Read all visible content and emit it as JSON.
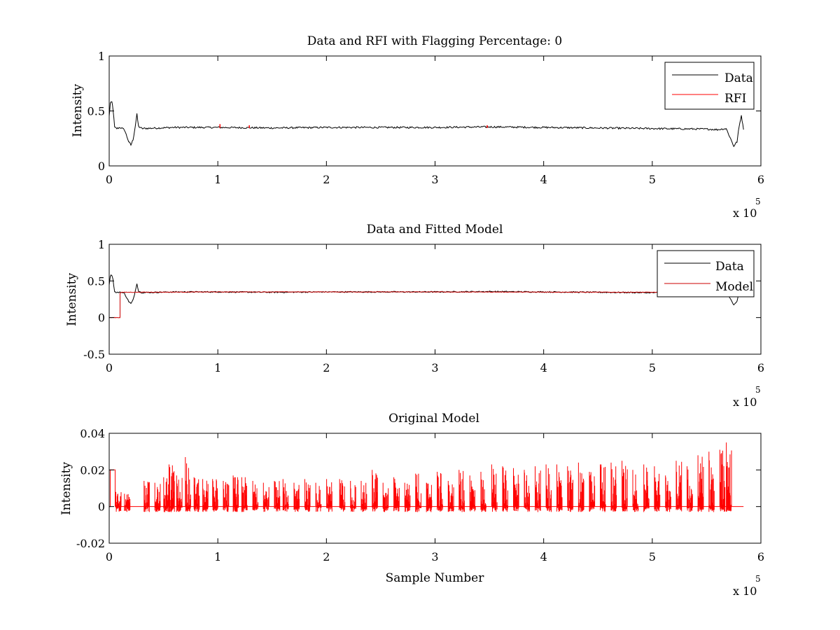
{
  "figure": {
    "background": "#ffffff"
  },
  "chart_data": [
    {
      "type": "line",
      "title": "Data and RFI with Flagging Percentage: 0",
      "xlabel": "",
      "ylabel": "Intensity",
      "xlim": [
        0,
        600000
      ],
      "ylim": [
        0,
        1
      ],
      "xticks": [
        0,
        1,
        2,
        3,
        4,
        5,
        6
      ],
      "xtick_labels": [
        "0",
        "1",
        "2",
        "3",
        "4",
        "5",
        "6"
      ],
      "yticks": [
        0,
        0.5,
        1
      ],
      "ytick_labels": [
        "0",
        "0.5",
        "1"
      ],
      "x_multiplier_text": "x 10",
      "x_multiplier_exp": "5",
      "legend_position": "top-right",
      "series": [
        {
          "name": "Data",
          "color": "#000000",
          "x": [
            0,
            1000,
            2500,
            3500,
            5000,
            7000,
            10000,
            14000,
            18000,
            20000,
            22000,
            24000,
            25500,
            27000,
            30000,
            60000,
            100000,
            150000,
            200000,
            250000,
            300000,
            350000,
            400000,
            450000,
            500000,
            550000,
            560000,
            568000,
            572000,
            575000,
            578000,
            580000,
            582000,
            584000
          ],
          "y": [
            0.45,
            0.57,
            0.58,
            0.52,
            0.35,
            0.34,
            0.35,
            0.33,
            0.22,
            0.19,
            0.24,
            0.36,
            0.47,
            0.36,
            0.34,
            0.35,
            0.35,
            0.345,
            0.35,
            0.35,
            0.35,
            0.355,
            0.35,
            0.345,
            0.34,
            0.335,
            0.33,
            0.34,
            0.25,
            0.18,
            0.22,
            0.36,
            0.46,
            0.33
          ],
          "noise": 0.008
        },
        {
          "name": "RFI",
          "color": "#ff0000",
          "segments": [
            {
              "x": [
                102000,
                102000
              ],
              "y": [
                0.345,
                0.38
              ]
            },
            {
              "x": [
                129000,
                129000
              ],
              "y": [
                0.345,
                0.37
              ]
            },
            {
              "x": [
                348000,
                348000
              ],
              "y": [
                0.345,
                0.37
              ]
            }
          ]
        }
      ],
      "legend": [
        {
          "label": "Data",
          "color": "#000000"
        },
        {
          "label": "RFI",
          "color": "#ff0000"
        }
      ]
    },
    {
      "type": "line",
      "title": "Data and Fitted Model",
      "xlabel": "",
      "ylabel": "Intensity",
      "xlim": [
        0,
        600000
      ],
      "ylim": [
        -0.5,
        1
      ],
      "xticks": [
        0,
        1,
        2,
        3,
        4,
        5,
        6
      ],
      "xtick_labels": [
        "0",
        "1",
        "2",
        "3",
        "4",
        "5",
        "6"
      ],
      "yticks": [
        -0.5,
        0,
        0.5,
        1
      ],
      "ytick_labels": [
        "-0.5",
        "0",
        "0.5",
        "1"
      ],
      "x_multiplier_text": "x 10",
      "x_multiplier_exp": "5",
      "legend_position": "top-right",
      "series": [
        {
          "name": "Data",
          "color": "#000000",
          "x": [
            0,
            1000,
            2500,
            3500,
            5000,
            7000,
            10000,
            14000,
            18000,
            20000,
            22000,
            24000,
            25500,
            27000,
            30000,
            60000,
            100000,
            150000,
            200000,
            250000,
            300000,
            350000,
            400000,
            450000,
            500000,
            550000,
            560000,
            568000,
            572000,
            575000,
            578000,
            580000,
            582000,
            584000
          ],
          "y": [
            0.45,
            0.57,
            0.58,
            0.52,
            0.35,
            0.34,
            0.35,
            0.33,
            0.22,
            0.19,
            0.24,
            0.36,
            0.47,
            0.36,
            0.34,
            0.35,
            0.35,
            0.345,
            0.35,
            0.35,
            0.35,
            0.355,
            0.35,
            0.345,
            0.34,
            0.335,
            0.33,
            0.34,
            0.25,
            0.18,
            0.22,
            0.36,
            0.46,
            0.33
          ],
          "noise": 0.008
        },
        {
          "name": "Model",
          "color": "#cc0000",
          "x": [
            0,
            10000,
            10000,
            11000,
            100000,
            200000,
            300000,
            400000,
            500000,
            584000
          ],
          "y": [
            0,
            0,
            0.34,
            0.345,
            0.35,
            0.35,
            0.35,
            0.348,
            0.345,
            0.34
          ],
          "noise": 0.004
        }
      ],
      "legend": [
        {
          "label": "Data",
          "color": "#000000"
        },
        {
          "label": "Model",
          "color": "#cc0000"
        }
      ]
    },
    {
      "type": "line",
      "title": "Original Model",
      "xlabel": "Sample Number",
      "ylabel": "Intensity",
      "xlim": [
        0,
        600000
      ],
      "ylim": [
        -0.02,
        0.04
      ],
      "xticks": [
        0,
        1,
        2,
        3,
        4,
        5,
        6
      ],
      "xtick_labels": [
        "0",
        "1",
        "2",
        "3",
        "4",
        "5",
        "6"
      ],
      "yticks": [
        -0.02,
        0,
        0.02,
        0.04
      ],
      "ytick_labels": [
        "-0.02",
        "0",
        "0.02",
        "0.04"
      ],
      "x_multiplier_text": "x 10",
      "x_multiplier_exp": "5",
      "series": [
        {
          "name": "",
          "color": "#ff0000",
          "step": {
            "x": [
              0,
              1000,
              1000,
              5500,
              5500
            ],
            "y": [
              0.0,
              0.0,
              0.02,
              0.02,
              0.0
            ]
          },
          "bursts_x": [
            6000,
            14000,
            32000,
            42000,
            50000,
            55000,
            62000,
            70000,
            78000,
            86000,
            95000,
            105000,
            114000,
            122000,
            132000,
            142000,
            152000,
            160000,
            170000,
            180000,
            190000,
            200000,
            212000,
            222000,
            232000,
            242000,
            252000,
            262000,
            272000,
            282000,
            292000,
            302000,
            312000,
            322000,
            332000,
            342000,
            352000,
            362000,
            372000,
            382000,
            392000,
            402000,
            412000,
            422000,
            432000,
            442000,
            452000,
            462000,
            472000,
            482000,
            492000,
            502000,
            512000,
            522000,
            532000,
            542000,
            552000,
            562000,
            568000
          ],
          "bursts_peak": [
            0.008,
            0.007,
            0.014,
            0.013,
            0.016,
            0.023,
            0.017,
            0.027,
            0.016,
            0.015,
            0.015,
            0.014,
            0.017,
            0.016,
            0.014,
            0.013,
            0.014,
            0.015,
            0.013,
            0.015,
            0.013,
            0.015,
            0.015,
            0.014,
            0.014,
            0.02,
            0.013,
            0.016,
            0.013,
            0.018,
            0.013,
            0.019,
            0.014,
            0.02,
            0.017,
            0.019,
            0.023,
            0.022,
            0.021,
            0.02,
            0.022,
            0.023,
            0.023,
            0.022,
            0.024,
            0.019,
            0.023,
            0.024,
            0.025,
            0.02,
            0.023,
            0.022,
            0.017,
            0.025,
            0.022,
            0.028,
            0.03,
            0.031,
            0.035
          ],
          "bursts_trough": -0.003,
          "end_x": 584000
        }
      ],
      "legend": []
    }
  ]
}
